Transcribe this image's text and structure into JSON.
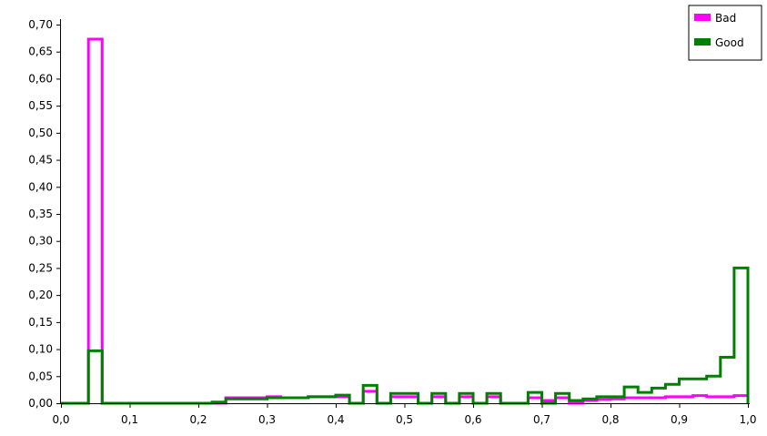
{
  "chart_data": {
    "type": "histogram",
    "title": "",
    "xlabel": "",
    "ylabel": "",
    "xlim": [
      0.0,
      1.0
    ],
    "ylim": [
      0.0,
      0.7
    ],
    "x_ticks": [
      "0,0",
      "0,1",
      "0,2",
      "0,3",
      "0,4",
      "0,5",
      "0,6",
      "0,7",
      "0,8",
      "0,9",
      "1,0"
    ],
    "y_ticks": [
      "0,00",
      "0,05",
      "0,10",
      "0,15",
      "0,20",
      "0,25",
      "0,30",
      "0,35",
      "0,40",
      "0,45",
      "0,50",
      "0,55",
      "0,60",
      "0,65",
      "0,70"
    ],
    "grid": false,
    "legend_position": "top-right",
    "bin_edges": [
      0.0,
      0.02,
      0.04,
      0.06,
      0.08,
      0.1,
      0.12,
      0.14,
      0.16,
      0.18,
      0.2,
      0.22,
      0.24,
      0.26,
      0.28,
      0.3,
      0.32,
      0.34,
      0.36,
      0.38,
      0.4,
      0.42,
      0.44,
      0.46,
      0.48,
      0.5,
      0.52,
      0.54,
      0.56,
      0.58,
      0.6,
      0.62,
      0.64,
      0.66,
      0.68,
      0.7,
      0.72,
      0.74,
      0.76,
      0.78,
      0.8,
      0.82,
      0.84,
      0.86,
      0.88,
      0.9,
      0.92,
      0.94,
      0.96,
      0.98,
      1.0
    ],
    "series": [
      {
        "name": "Bad",
        "color": "#ff00ff",
        "values": [
          0.0,
          0.0,
          0.673,
          0.0,
          0.0,
          0.0,
          0.0,
          0.0,
          0.0,
          0.0,
          0.0,
          0.0,
          0.01,
          0.01,
          0.01,
          0.012,
          0.01,
          0.01,
          0.012,
          0.012,
          0.012,
          0.0,
          0.022,
          0.0,
          0.012,
          0.012,
          0.0,
          0.012,
          0.0,
          0.012,
          0.0,
          0.012,
          0.0,
          0.0,
          0.01,
          0.005,
          0.01,
          0.0,
          0.005,
          0.007,
          0.008,
          0.01,
          0.01,
          0.01,
          0.012,
          0.012,
          0.014,
          0.012,
          0.012,
          0.014
        ]
      },
      {
        "name": "Good",
        "color": "#008000",
        "values": [
          0.0,
          0.0,
          0.097,
          0.0,
          0.0,
          0.0,
          0.0,
          0.0,
          0.0,
          0.0,
          0.0,
          0.002,
          0.008,
          0.008,
          0.008,
          0.01,
          0.01,
          0.01,
          0.012,
          0.012,
          0.015,
          0.0,
          0.033,
          0.0,
          0.018,
          0.018,
          0.0,
          0.018,
          0.0,
          0.018,
          0.0,
          0.018,
          0.0,
          0.0,
          0.02,
          0.0,
          0.018,
          0.005,
          0.008,
          0.012,
          0.012,
          0.03,
          0.02,
          0.028,
          0.035,
          0.045,
          0.045,
          0.05,
          0.085,
          0.25
        ]
      }
    ]
  }
}
